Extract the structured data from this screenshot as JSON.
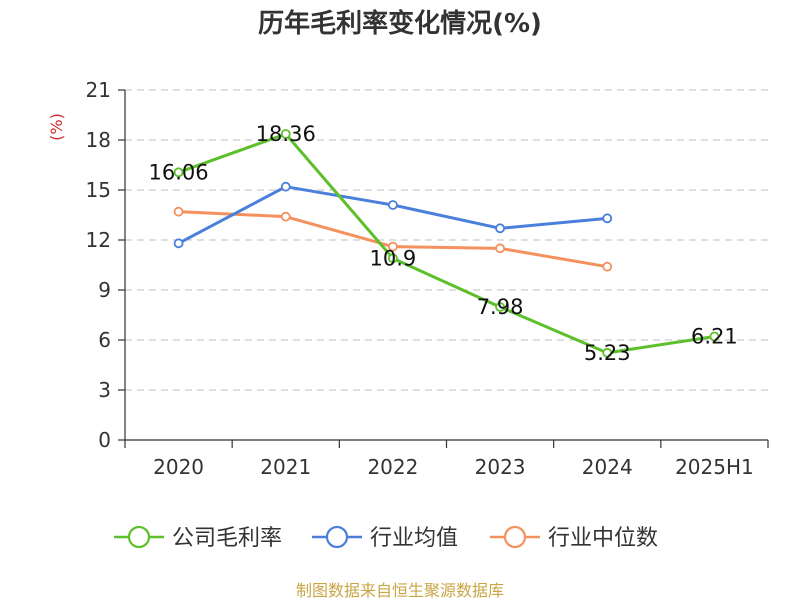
{
  "chart_data": {
    "type": "line",
    "title": "历年毛利率变化情况(%)",
    "ylabel": "(%)",
    "xlabel": "",
    "categories": [
      "2020",
      "2021",
      "2022",
      "2023",
      "2024",
      "2025H1"
    ],
    "ylim": [
      0,
      21
    ],
    "yticks": [
      0,
      3,
      6,
      9,
      12,
      15,
      18,
      21
    ],
    "grid": true,
    "legend_position": "bottom",
    "series": [
      {
        "name": "公司毛利率",
        "color": "#5dbf2a",
        "values": [
          16.06,
          18.36,
          10.9,
          7.98,
          5.23,
          6.21
        ],
        "labels": [
          "16.06",
          "18.36",
          "10.9",
          "7.98",
          "5.23",
          "6.21"
        ]
      },
      {
        "name": "行业均值",
        "color": "#4a7fdb",
        "values": [
          11.8,
          15.2,
          14.1,
          12.7,
          13.3,
          null
        ]
      },
      {
        "name": "行业中位数",
        "color": "#f4915e",
        "values": [
          13.7,
          13.4,
          11.6,
          11.5,
          10.4,
          null
        ]
      }
    ]
  },
  "footer": {
    "source": "制图数据来自恒生聚源数据库"
  }
}
